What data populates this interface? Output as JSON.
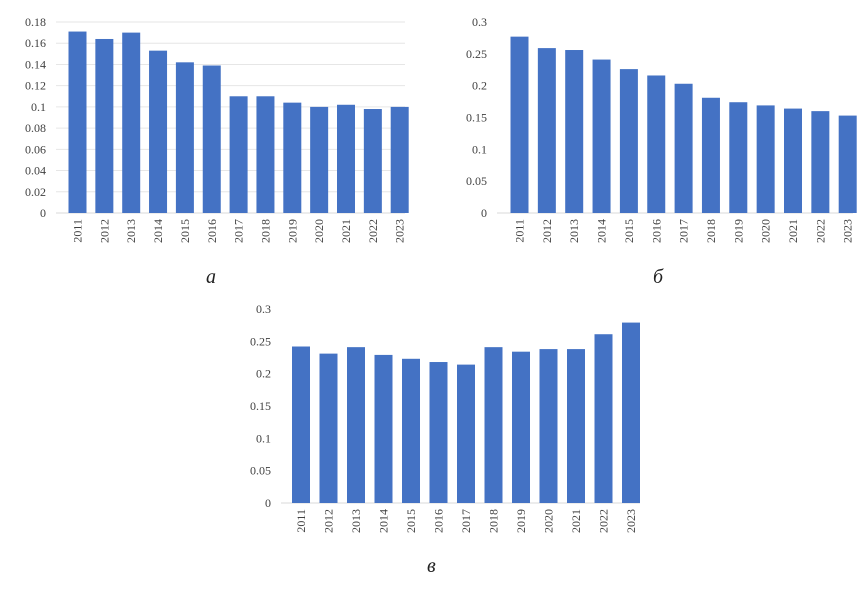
{
  "chart_data": [
    {
      "type": "bar",
      "panel_label": "а",
      "categories": [
        "2011",
        "2012",
        "2013",
        "2014",
        "2015",
        "2016",
        "2017",
        "2018",
        "2019",
        "2020",
        "2021",
        "2022",
        "2023"
      ],
      "values": [
        0.171,
        0.164,
        0.17,
        0.153,
        0.142,
        0.139,
        0.11,
        0.11,
        0.104,
        0.1,
        0.102,
        0.098,
        0.1
      ],
      "yticks": [
        "0",
        "0.02",
        "0.04",
        "0.06",
        "0.08",
        "0.1",
        "0.12",
        "0.14",
        "0.16",
        "0.18"
      ],
      "ylim": [
        0,
        0.18
      ],
      "grid": true,
      "bar_color": "#4472c4"
    },
    {
      "type": "bar",
      "panel_label": "б",
      "categories": [
        "2011",
        "2012",
        "2013",
        "2014",
        "2015",
        "2016",
        "2017",
        "2018",
        "2019",
        "2020",
        "2021",
        "2022",
        "2023"
      ],
      "values": [
        0.277,
        0.259,
        0.256,
        0.241,
        0.226,
        0.216,
        0.203,
        0.181,
        0.174,
        0.169,
        0.164,
        0.16,
        0.153
      ],
      "yticks": [
        "0",
        "0.05",
        "0.1",
        "0.15",
        "0.2",
        "0.25",
        "0.3"
      ],
      "ylim": [
        0,
        0.3
      ],
      "grid": false,
      "bar_color": "#4472c4"
    },
    {
      "type": "bar",
      "panel_label": "в",
      "categories": [
        "2011",
        "2012",
        "2013",
        "2014",
        "2015",
        "2016",
        "2017",
        "2018",
        "2019",
        "2020",
        "2021",
        "2022",
        "2023"
      ],
      "values": [
        0.242,
        0.231,
        0.241,
        0.229,
        0.223,
        0.218,
        0.214,
        0.241,
        0.234,
        0.238,
        0.238,
        0.261,
        0.279
      ],
      "yticks": [
        "0",
        "0.05",
        "0.1",
        "0.15",
        "0.2",
        "0.25",
        "0.3"
      ],
      "ylim": [
        0,
        0.3
      ],
      "grid": false,
      "bar_color": "#4472c4"
    }
  ]
}
